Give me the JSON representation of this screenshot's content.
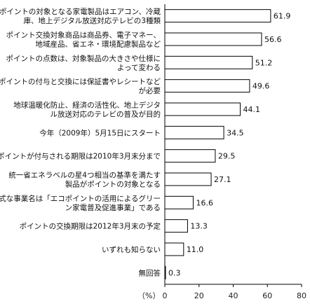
{
  "chart_data": {
    "type": "bar",
    "orientation": "horizontal",
    "categories": [
      [
        "ポイントの対象となる家電製品はエアコン、冷蔵",
        "庫、地上デジタル放送対応テレビの3種類"
      ],
      [
        "ポイント交換対象商品は商品券、電子マネー、",
        "地域産品、省エネ・環境配慮製品など"
      ],
      [
        "ポイントの点数は、対象製品の大きさや仕様に",
        "よって変わる"
      ],
      [
        "ポイントの付与と交換には保証書やレシートなど",
        "が必要"
      ],
      [
        "地球温暖化防止、経済の活性化、地上デジタ",
        "ル放送対応のテレビの普及が目的"
      ],
      [
        "今年（2009年）5月15日にスタート"
      ],
      [
        "ポイントが付与される期限は2010年3月末分まで"
      ],
      [
        "統一省エネラベルの星4つ相当の基準を満たす",
        "製品がポイントの対象となる"
      ],
      [
        "正式な事業名は「エコポイントの活用によるグリー",
        "ン家電普及促進事業」である"
      ],
      [
        "ポイントの交換期限は2012年3月末の予定"
      ],
      [
        "いずれも知らない"
      ],
      [
        "無回答"
      ]
    ],
    "values": [
      61.9,
      56.6,
      51.2,
      49.6,
      44.1,
      34.5,
      29.5,
      27.1,
      16.6,
      13.3,
      11.0,
      0.3
    ],
    "value_labels": [
      "61.9",
      "56.6",
      "51.2",
      "49.6",
      "44.1",
      "34.5",
      "29.5",
      "27.1",
      "16.6",
      "13.3",
      "11.0",
      "0.3"
    ],
    "xlim": [
      0,
      80
    ],
    "xticks": [
      0,
      20,
      40,
      60,
      80
    ],
    "unit_label": "（%）",
    "grid": false,
    "bar_fill": "#ffffff",
    "bar_edge": "#000000"
  }
}
